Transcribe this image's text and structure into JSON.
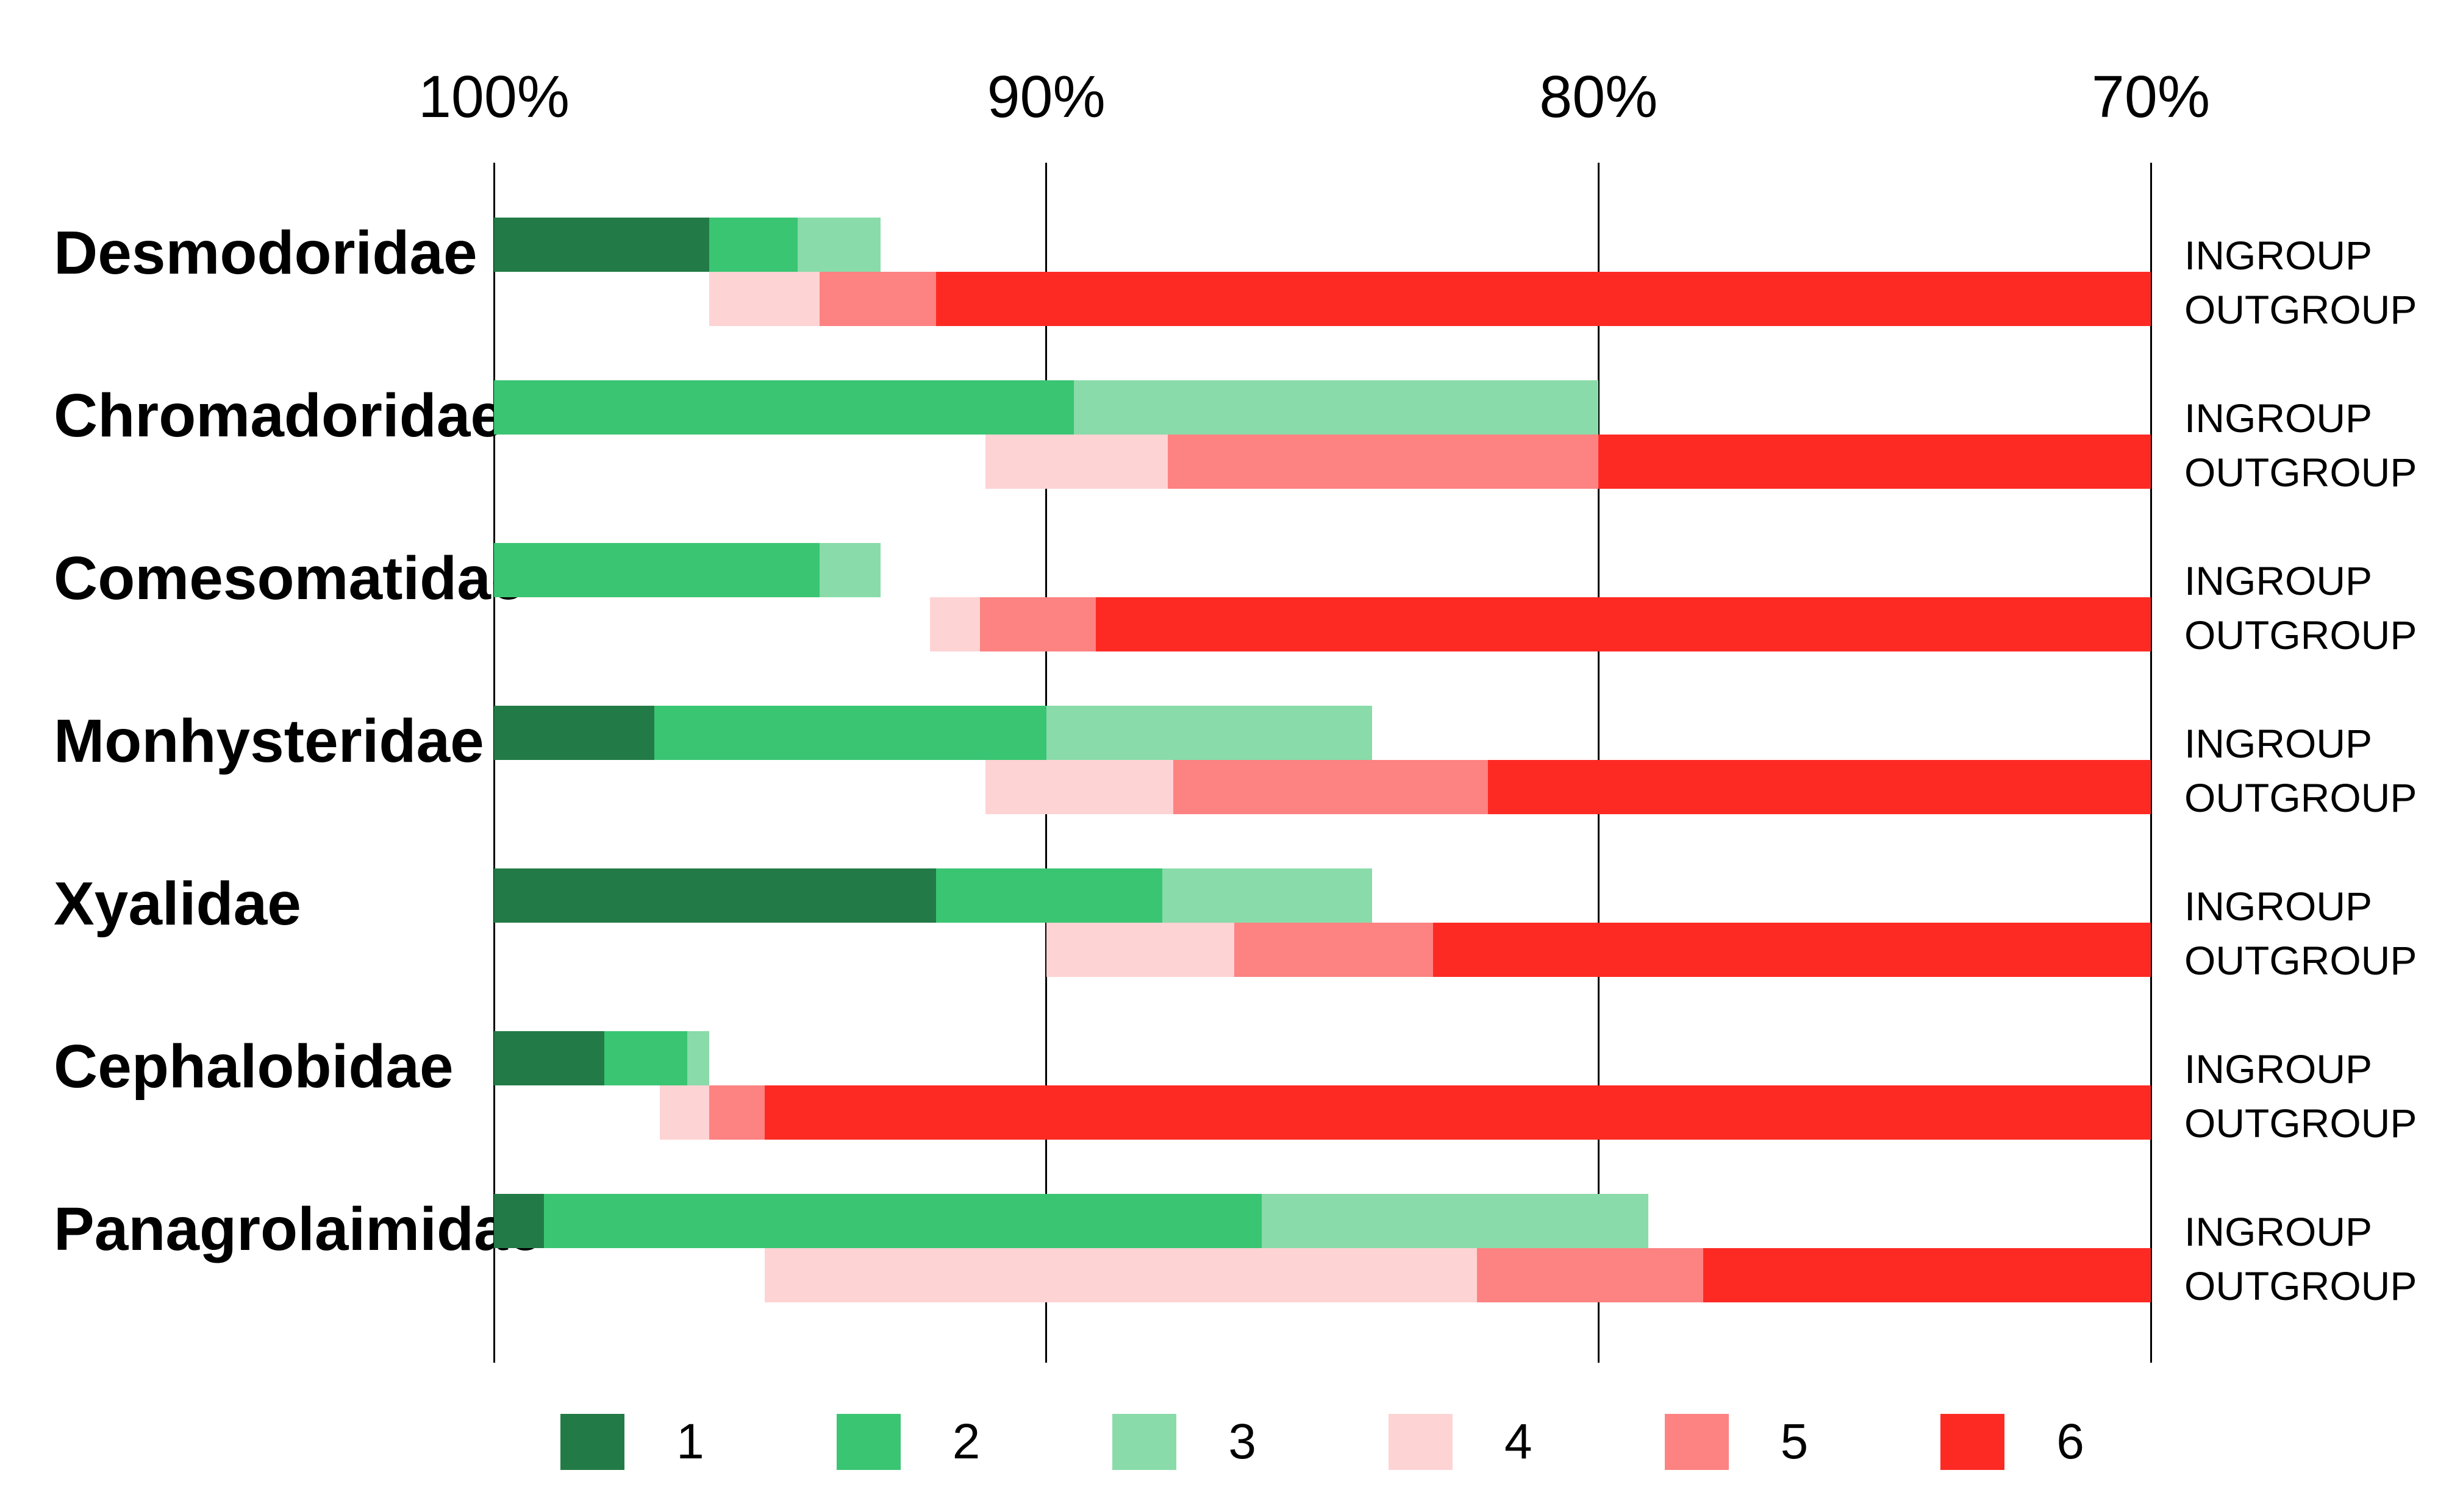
{
  "chart_data": {
    "type": "bar",
    "orientation": "horizontal-stacked",
    "title": "",
    "x_axis": {
      "ticks": [
        "100%",
        "90%",
        "80%",
        "70%"
      ],
      "values": [
        100,
        90,
        80,
        70
      ],
      "min": 70,
      "max": 100,
      "reversed": true,
      "grid": true
    },
    "row_labels": {
      "ingroup": "INGROUP",
      "outgroup": "OUTGROUP"
    },
    "legend": {
      "position": "bottom",
      "entries": [
        {
          "label": "1",
          "color": "#227B46"
        },
        {
          "label": "2",
          "color": "#3AC573"
        },
        {
          "label": "3",
          "color": "#89DBA9"
        },
        {
          "label": "4",
          "color": "#FED3D4"
        },
        {
          "label": "5",
          "color": "#FD8282"
        },
        {
          "label": "6",
          "color": "#FD2A24"
        }
      ]
    },
    "families": [
      {
        "name": "Desmodoridae",
        "ingroup": [
          {
            "cat": "1",
            "from": 100.0,
            "to": 96.1
          },
          {
            "cat": "2",
            "from": 96.1,
            "to": 94.5
          },
          {
            "cat": "3",
            "from": 94.5,
            "to": 93.0
          }
        ],
        "outgroup": [
          {
            "cat": "4",
            "from": 96.1,
            "to": 94.1
          },
          {
            "cat": "5",
            "from": 94.1,
            "to": 92.0
          },
          {
            "cat": "6",
            "from": 92.0,
            "to": 70.0
          }
        ]
      },
      {
        "name": "Chromadoridae",
        "ingroup": [
          {
            "cat": "2",
            "from": 100.0,
            "to": 89.5
          },
          {
            "cat": "3",
            "from": 89.5,
            "to": 80.0
          }
        ],
        "outgroup": [
          {
            "cat": "4",
            "from": 91.1,
            "to": 87.8
          },
          {
            "cat": "5",
            "from": 87.8,
            "to": 80.0
          },
          {
            "cat": "6",
            "from": 80.0,
            "to": 70.0
          }
        ]
      },
      {
        "name": "Comesomatidae",
        "ingroup": [
          {
            "cat": "2",
            "from": 100.0,
            "to": 94.1
          },
          {
            "cat": "3",
            "from": 94.1,
            "to": 93.0
          }
        ],
        "outgroup": [
          {
            "cat": "4",
            "from": 92.1,
            "to": 91.2
          },
          {
            "cat": "5",
            "from": 91.2,
            "to": 89.1
          },
          {
            "cat": "6",
            "from": 89.1,
            "to": 70.0
          }
        ]
      },
      {
        "name": "Monhysteridae",
        "ingroup": [
          {
            "cat": "1",
            "from": 100.0,
            "to": 97.1
          },
          {
            "cat": "2",
            "from": 97.1,
            "to": 90.0
          },
          {
            "cat": "3",
            "from": 90.0,
            "to": 84.1
          }
        ],
        "outgroup": [
          {
            "cat": "4",
            "from": 91.1,
            "to": 87.7
          },
          {
            "cat": "5",
            "from": 87.7,
            "to": 82.0
          },
          {
            "cat": "6",
            "from": 82.0,
            "to": 70.0
          }
        ]
      },
      {
        "name": "Xyalidae",
        "ingroup": [
          {
            "cat": "1",
            "from": 100.0,
            "to": 92.0
          },
          {
            "cat": "2",
            "from": 92.0,
            "to": 87.9
          },
          {
            "cat": "3",
            "from": 87.9,
            "to": 84.1
          }
        ],
        "outgroup": [
          {
            "cat": "4",
            "from": 90.0,
            "to": 86.6
          },
          {
            "cat": "5",
            "from": 86.6,
            "to": 83.0
          },
          {
            "cat": "6",
            "from": 83.0,
            "to": 70.0
          }
        ]
      },
      {
        "name": "Cephalobidae",
        "ingroup": [
          {
            "cat": "1",
            "from": 100.0,
            "to": 98.0
          },
          {
            "cat": "2",
            "from": 98.0,
            "to": 96.5
          },
          {
            "cat": "3",
            "from": 96.5,
            "to": 96.1
          }
        ],
        "outgroup": [
          {
            "cat": "4",
            "from": 97.0,
            "to": 96.1
          },
          {
            "cat": "5",
            "from": 96.1,
            "to": 95.1
          },
          {
            "cat": "6",
            "from": 95.1,
            "to": 70.0
          }
        ]
      },
      {
        "name": "Panagrolaimidae",
        "ingroup": [
          {
            "cat": "1",
            "from": 100.0,
            "to": 99.1
          },
          {
            "cat": "2",
            "from": 99.1,
            "to": 86.1
          },
          {
            "cat": "3",
            "from": 86.1,
            "to": 79.1
          }
        ],
        "outgroup": [
          {
            "cat": "4",
            "from": 95.1,
            "to": 82.2
          },
          {
            "cat": "5",
            "from": 82.2,
            "to": 78.1
          },
          {
            "cat": "6",
            "from": 78.1,
            "to": 70.0
          }
        ]
      }
    ]
  }
}
